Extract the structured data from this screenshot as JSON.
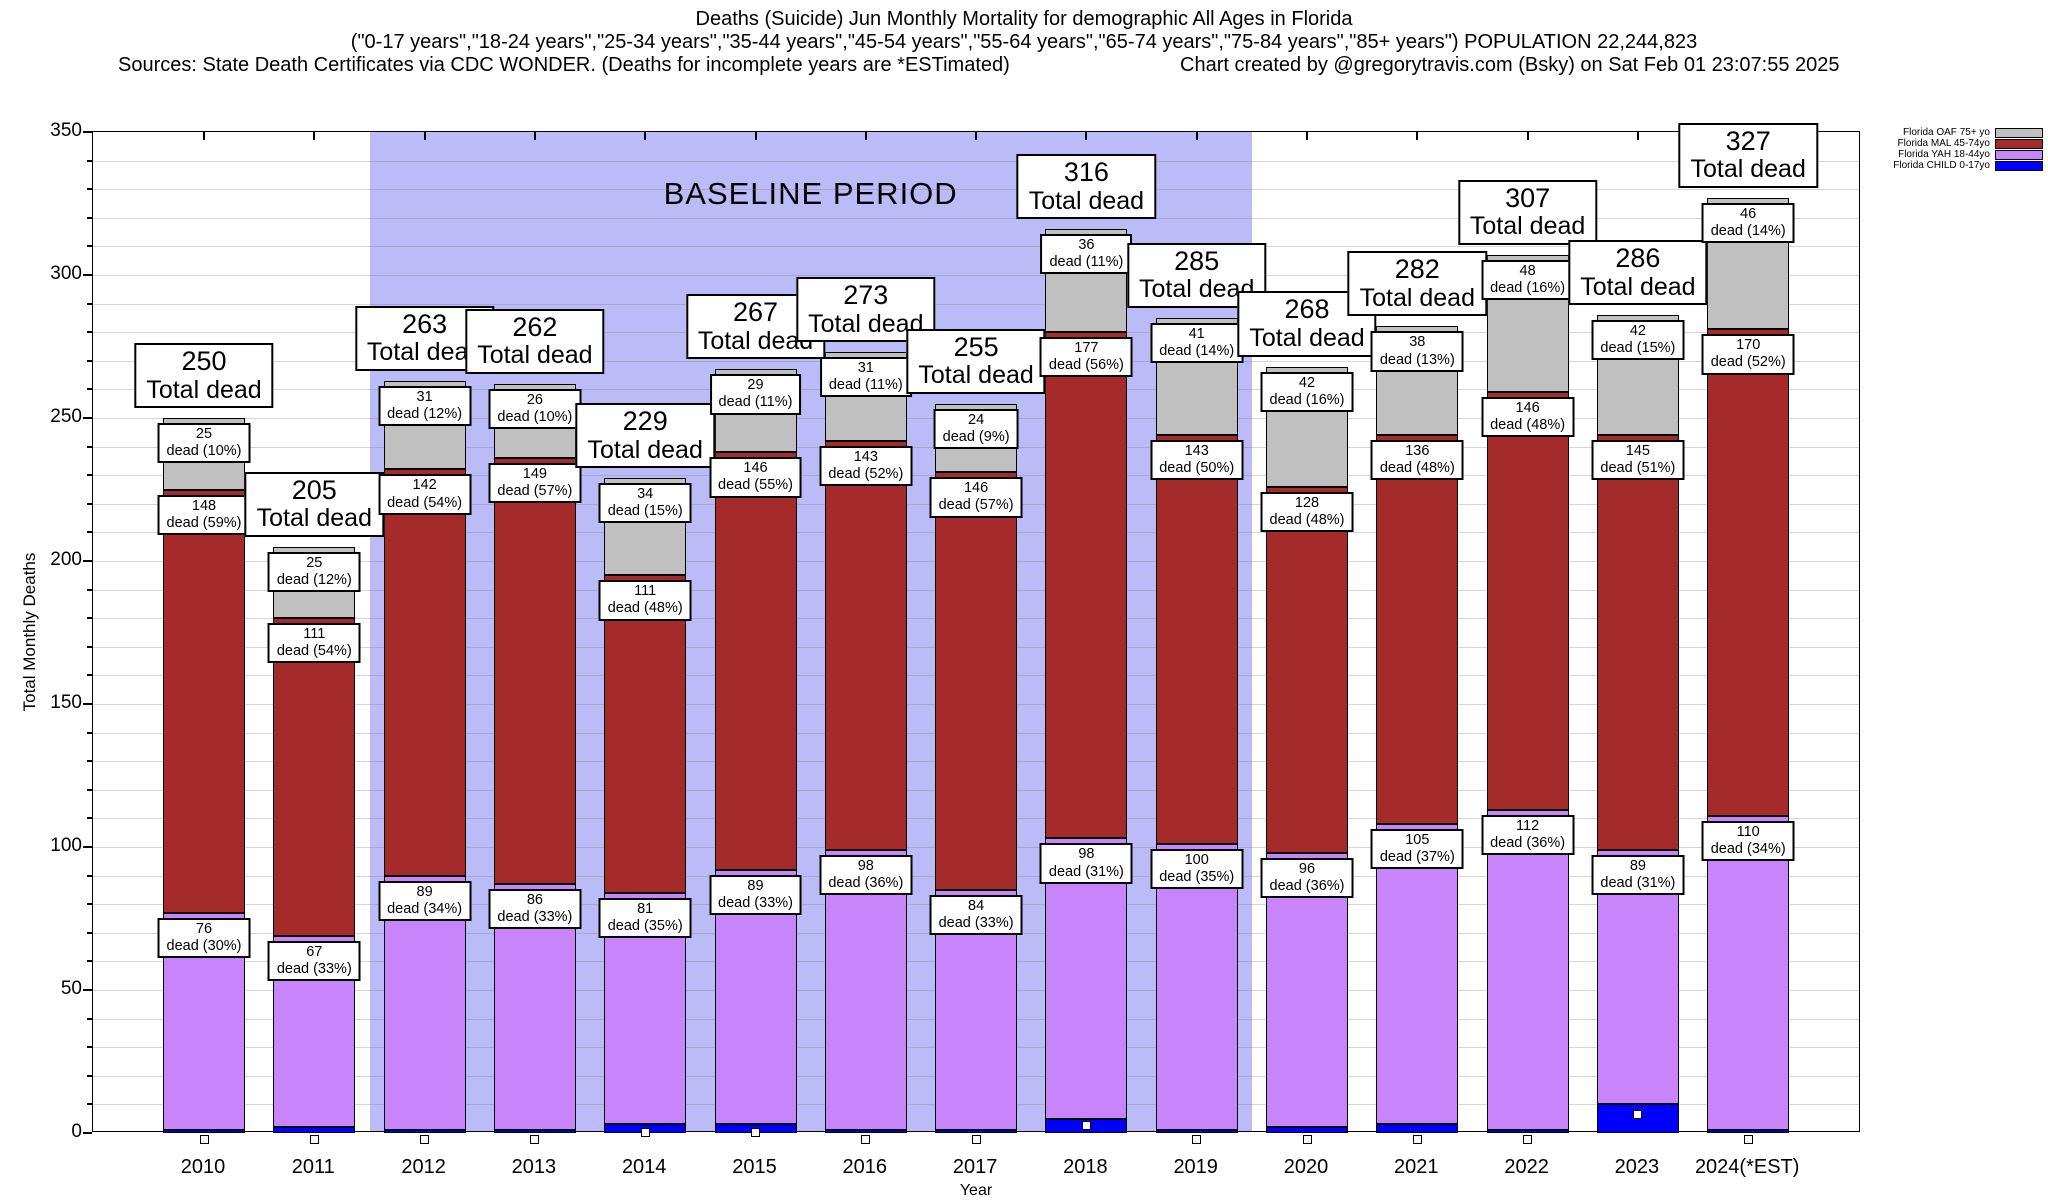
{
  "header": {
    "title": "Deaths (Suicide) Jun Monthly Mortality for demographic All Ages in Florida",
    "subtitle": "(\"0-17 years\",\"18-24 years\",\"25-34 years\",\"35-44 years\",\"45-54 years\",\"55-64 years\",\"65-74 years\",\"75-84 years\",\"85+ years\") POPULATION 22,244,823",
    "sources": "Sources: State Death Certificates via CDC WONDER. (Deaths for incomplete years are *ESTimated)",
    "credit": "Chart created by @gregorytravis.com (Bsky) on Sat Feb 01 23:07:55 2025"
  },
  "chart_data": {
    "type": "bar",
    "stacked": true,
    "title": "Deaths (Suicide) Jun Monthly Mortality for demographic All Ages in Florida",
    "xlabel": "Year",
    "ylabel": "Total Monthly Deaths",
    "ylim": [
      0,
      350
    ],
    "ytick_interval": 50,
    "minor_grid_interval": 10,
    "grid": true,
    "legend_position": "top-right",
    "baseline_period": {
      "label": "BASELINE PERIOD",
      "from": "2012",
      "to": "2019",
      "band_color": "#bbbbf7"
    },
    "categories": [
      "2010",
      "2011",
      "2012",
      "2013",
      "2014",
      "2015",
      "2016",
      "2017",
      "2018",
      "2019",
      "2020",
      "2021",
      "2022",
      "2023",
      "2024(*EST)"
    ],
    "totals": [
      250,
      205,
      263,
      262,
      229,
      267,
      273,
      255,
      316,
      285,
      268,
      282,
      307,
      286,
      327
    ],
    "total_label_suffix": "Total dead",
    "segment_label_prefix": "dead",
    "series": [
      {
        "key": "child",
        "name": "Florida CHILD 0-17yo",
        "color": "#0000ff",
        "labeled": false,
        "values": [
          1,
          2,
          1,
          1,
          3,
          3,
          1,
          1,
          5,
          1,
          2,
          3,
          1,
          10,
          1
        ]
      },
      {
        "key": "yah",
        "name": "Florida YAH 18-44yo",
        "color": "#c884fa",
        "labeled": true,
        "values": [
          76,
          67,
          89,
          86,
          81,
          89,
          98,
          84,
          98,
          100,
          96,
          105,
          112,
          89,
          110
        ],
        "pcts": [
          "30%",
          "33%",
          "34%",
          "33%",
          "35%",
          "33%",
          "36%",
          "33%",
          "31%",
          "35%",
          "36%",
          "37%",
          "36%",
          "31%",
          "34%"
        ]
      },
      {
        "key": "mal",
        "name": "Florida MAL 45-74yo",
        "color": "#a52a2a",
        "labeled": true,
        "values": [
          148,
          111,
          142,
          149,
          111,
          146,
          143,
          146,
          177,
          143,
          128,
          136,
          146,
          145,
          170
        ],
        "pcts": [
          "59%",
          "54%",
          "54%",
          "57%",
          "48%",
          "55%",
          "52%",
          "57%",
          "56%",
          "50%",
          "48%",
          "48%",
          "48%",
          "51%",
          "52%"
        ]
      },
      {
        "key": "oaf",
        "name": "Florida OAF 75+ yo",
        "color": "#c0c0c0",
        "labeled": true,
        "values": [
          25,
          25,
          31,
          26,
          34,
          29,
          31,
          24,
          36,
          41,
          42,
          38,
          48,
          42,
          46
        ],
        "pcts": [
          "10%",
          "12%",
          "12%",
          "10%",
          "15%",
          "11%",
          "11%",
          "9%",
          "11%",
          "14%",
          "16%",
          "13%",
          "16%",
          "15%",
          "14%"
        ]
      }
    ],
    "legend_order": [
      "oaf",
      "mal",
      "yah",
      "child"
    ],
    "ytick_labels": [
      "0",
      "50",
      "100",
      "150",
      "200",
      "250",
      "300",
      "350"
    ]
  }
}
